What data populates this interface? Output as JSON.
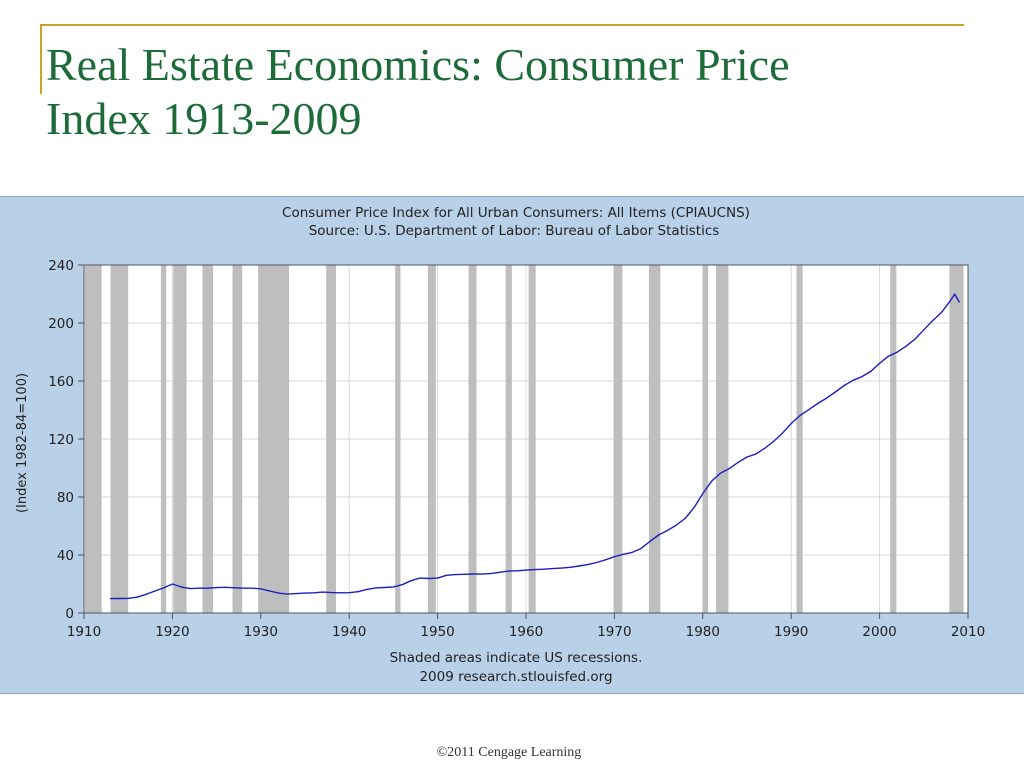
{
  "slide": {
    "title_line1": "Real Estate Economics: Consumer Price",
    "title_line2": "Index 1913-2009",
    "copyright": "©2011 Cengage Learning"
  },
  "colors": {
    "title_green": "#1e6b3a",
    "rule_gold": "#c9a227",
    "panel_blue": "#b8d0e8",
    "recession_gray": "#bebebe",
    "line_blue": "#1f1fbf"
  },
  "chart_data": {
    "type": "line",
    "title": "Consumer Price Index for All Urban Consumers: All Items (CPIAUCNS)",
    "subtitle": "Source: U.S. Department of Labor: Bureau of Labor Statistics",
    "ylabel": "(Index 1982-84=100)",
    "xlabel": "",
    "footer_line1": "Shaded areas indicate US recessions.",
    "footer_line2": "2009 research.stlouisfed.org",
    "xlim": [
      1910,
      2010
    ],
    "ylim": [
      0,
      240
    ],
    "xticks": [
      "1910",
      "1920",
      "1930",
      "1940",
      "1950",
      "1960",
      "1970",
      "1980",
      "1990",
      "2000",
      "2010"
    ],
    "yticks": [
      "0",
      "40",
      "80",
      "120",
      "160",
      "200",
      "240"
    ],
    "grid": true,
    "recessions": [
      [
        1910.1,
        1912.0
      ],
      [
        1913.0,
        1915.0
      ],
      [
        1918.7,
        1919.3
      ],
      [
        1920.1,
        1921.6
      ],
      [
        1923.4,
        1924.6
      ],
      [
        1926.8,
        1927.9
      ],
      [
        1929.7,
        1933.2
      ],
      [
        1937.4,
        1938.5
      ],
      [
        1945.2,
        1945.8
      ],
      [
        1948.9,
        1949.8
      ],
      [
        1953.5,
        1954.4
      ],
      [
        1957.7,
        1958.4
      ],
      [
        1960.3,
        1961.1
      ],
      [
        1969.9,
        1970.9
      ],
      [
        1973.9,
        1975.2
      ],
      [
        1980.0,
        1980.6
      ],
      [
        1981.5,
        1982.9
      ],
      [
        1990.6,
        1991.3
      ],
      [
        2001.2,
        2001.9
      ],
      [
        2007.9,
        2009.5
      ]
    ],
    "series": [
      {
        "name": "CPIAUCNS",
        "x": [
          1913,
          1914,
          1915,
          1916,
          1917,
          1918,
          1919,
          1920,
          1921,
          1922,
          1923,
          1924,
          1925,
          1926,
          1927,
          1928,
          1929,
          1930,
          1931,
          1932,
          1933,
          1934,
          1935,
          1936,
          1937,
          1938,
          1939,
          1940,
          1941,
          1942,
          1943,
          1944,
          1945,
          1946,
          1947,
          1948,
          1949,
          1950,
          1951,
          1952,
          1953,
          1954,
          1955,
          1956,
          1957,
          1958,
          1959,
          1960,
          1961,
          1962,
          1963,
          1964,
          1965,
          1966,
          1967,
          1968,
          1969,
          1970,
          1971,
          1972,
          1973,
          1974,
          1975,
          1976,
          1977,
          1978,
          1979,
          1980,
          1981,
          1982,
          1983,
          1984,
          1985,
          1986,
          1987,
          1988,
          1989,
          1990,
          1991,
          1992,
          1993,
          1994,
          1995,
          1996,
          1997,
          1998,
          1999,
          2000,
          2001,
          2002,
          2003,
          2004,
          2005,
          2006,
          2007,
          2008,
          2008.5,
          2009
        ],
        "y": [
          9.9,
          10.0,
          10.1,
          10.9,
          12.8,
          15.1,
          17.3,
          20.0,
          17.9,
          16.8,
          17.1,
          17.1,
          17.5,
          17.7,
          17.4,
          17.1,
          17.1,
          16.7,
          15.2,
          13.7,
          13.0,
          13.4,
          13.7,
          13.9,
          14.4,
          14.1,
          13.9,
          14.0,
          14.7,
          16.3,
          17.3,
          17.6,
          18.0,
          19.5,
          22.3,
          24.1,
          23.8,
          24.1,
          26.0,
          26.5,
          26.7,
          26.9,
          26.8,
          27.2,
          28.1,
          28.9,
          29.1,
          29.6,
          29.9,
          30.2,
          30.6,
          31.0,
          31.5,
          32.4,
          33.4,
          34.8,
          36.7,
          38.8,
          40.5,
          41.8,
          44.4,
          49.3,
          53.8,
          56.9,
          60.6,
          65.2,
          72.6,
          82.4,
          90.9,
          96.5,
          99.6,
          103.9,
          107.6,
          109.6,
          113.6,
          118.3,
          124.0,
          130.7,
          136.2,
          140.3,
          144.5,
          148.2,
          152.4,
          156.9,
          160.5,
          163.0,
          166.6,
          172.2,
          177.1,
          179.9,
          184.0,
          188.9,
          195.3,
          201.6,
          207.3,
          215.3,
          219.9,
          214.5
        ]
      }
    ]
  }
}
